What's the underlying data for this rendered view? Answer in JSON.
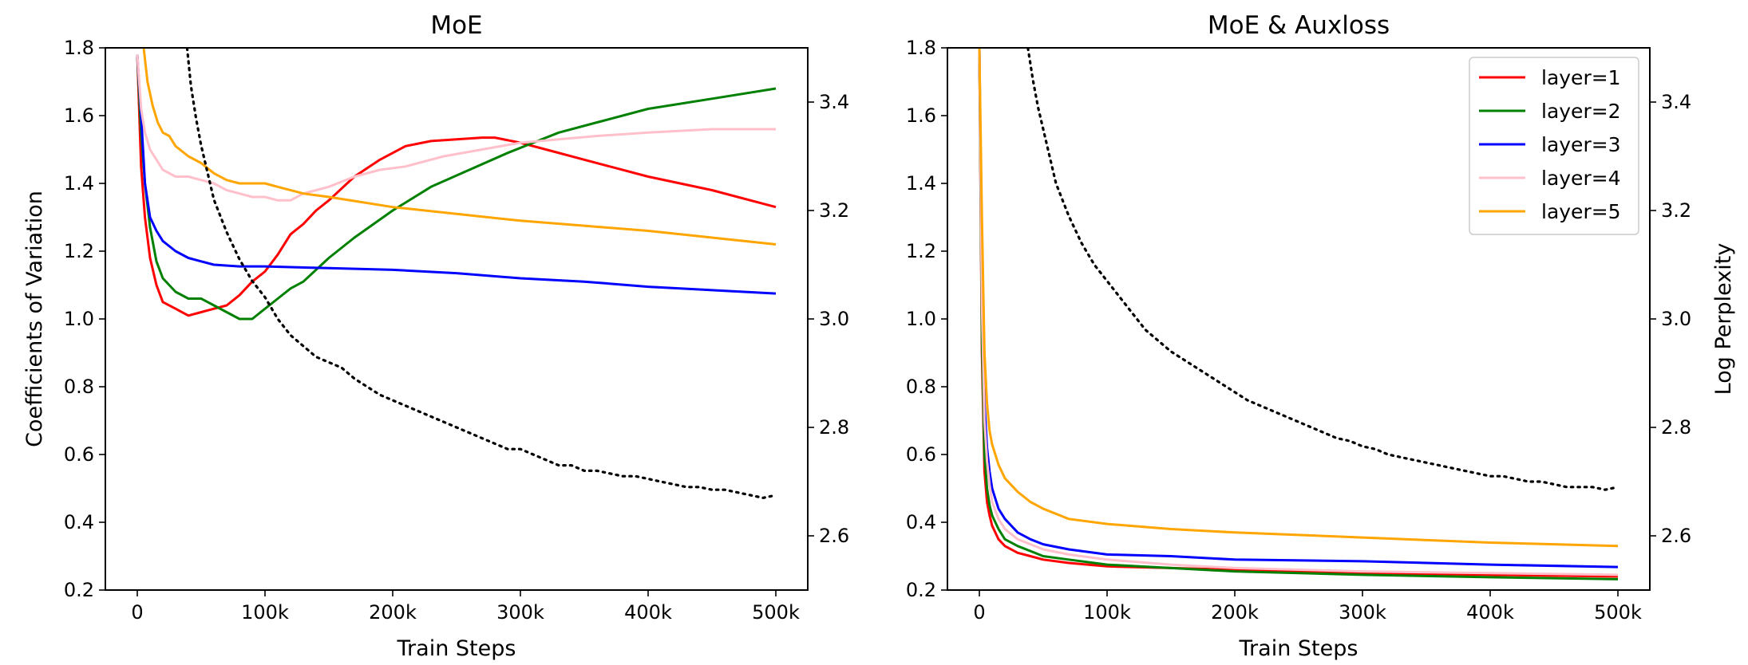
{
  "chart_data": [
    {
      "type": "line",
      "title": "MoE",
      "xlabel": "Train Steps",
      "ylabel": "Coefficients of Variation",
      "y2label": "",
      "xlim": [
        -25000,
        525000
      ],
      "ylim": [
        0.2,
        1.8
      ],
      "y2lim": [
        2.5,
        3.5
      ],
      "xticks": [
        0,
        100000,
        200000,
        300000,
        400000,
        500000
      ],
      "xtick_labels": [
        "0",
        "100k",
        "200k",
        "300k",
        "400k",
        "500k"
      ],
      "yticks": [
        0.2,
        0.4,
        0.6,
        0.8,
        1.0,
        1.2,
        1.4,
        1.6,
        1.8
      ],
      "ytick_labels": [
        "0.2",
        "0.4",
        "0.6",
        "0.8",
        "1.0",
        "1.2",
        "1.4",
        "1.6",
        "1.8"
      ],
      "y2ticks": [
        2.6,
        2.8,
        3.0,
        3.2,
        3.4
      ],
      "y2tick_labels": [
        "2.6",
        "2.8",
        "3.0",
        "3.2",
        "3.4"
      ],
      "grid": false,
      "legend": null,
      "series": [
        {
          "name": "layer=1",
          "color": "#ff0000",
          "axis": "left",
          "x": [
            0,
            3000,
            6000,
            10000,
            15000,
            20000,
            30000,
            40000,
            50000,
            60000,
            70000,
            80000,
            90000,
            100000,
            110000,
            120000,
            130000,
            140000,
            150000,
            170000,
            190000,
            210000,
            230000,
            250000,
            270000,
            280000,
            300000,
            320000,
            350000,
            400000,
            450000,
            500000
          ],
          "y": [
            1.78,
            1.45,
            1.3,
            1.18,
            1.1,
            1.05,
            1.03,
            1.01,
            1.02,
            1.03,
            1.04,
            1.07,
            1.11,
            1.14,
            1.19,
            1.25,
            1.28,
            1.32,
            1.35,
            1.42,
            1.47,
            1.51,
            1.525,
            1.53,
            1.535,
            1.535,
            1.52,
            1.5,
            1.47,
            1.42,
            1.38,
            1.33
          ]
        },
        {
          "name": "layer=2",
          "color": "#008000",
          "axis": "left",
          "x": [
            0,
            3000,
            6000,
            10000,
            15000,
            20000,
            30000,
            40000,
            50000,
            60000,
            70000,
            80000,
            90000,
            100000,
            110000,
            120000,
            130000,
            150000,
            170000,
            200000,
            230000,
            260000,
            290000,
            310000,
            330000,
            360000,
            400000,
            450000,
            500000
          ],
          "y": [
            1.78,
            1.55,
            1.4,
            1.27,
            1.17,
            1.12,
            1.08,
            1.06,
            1.06,
            1.04,
            1.02,
            1.0,
            1.0,
            1.03,
            1.06,
            1.09,
            1.11,
            1.18,
            1.24,
            1.32,
            1.39,
            1.44,
            1.49,
            1.52,
            1.55,
            1.58,
            1.62,
            1.65,
            1.68
          ]
        },
        {
          "name": "layer=3",
          "color": "#0000ff",
          "axis": "left",
          "x": [
            0,
            3000,
            6000,
            10000,
            15000,
            20000,
            30000,
            40000,
            50000,
            60000,
            80000,
            100000,
            150000,
            200000,
            250000,
            300000,
            350000,
            400000,
            450000,
            500000
          ],
          "y": [
            1.78,
            1.6,
            1.4,
            1.3,
            1.26,
            1.23,
            1.2,
            1.18,
            1.17,
            1.16,
            1.155,
            1.155,
            1.15,
            1.145,
            1.135,
            1.12,
            1.11,
            1.095,
            1.085,
            1.075
          ]
        },
        {
          "name": "layer=4",
          "color": "#ffc0cb",
          "axis": "left",
          "x": [
            0,
            3000,
            6000,
            10000,
            15000,
            20000,
            30000,
            40000,
            50000,
            60000,
            70000,
            80000,
            90000,
            100000,
            110000,
            120000,
            130000,
            140000,
            150000,
            170000,
            190000,
            210000,
            240000,
            270000,
            300000,
            330000,
            360000,
            400000,
            450000,
            500000
          ],
          "y": [
            1.78,
            1.62,
            1.55,
            1.5,
            1.47,
            1.44,
            1.42,
            1.42,
            1.41,
            1.4,
            1.38,
            1.37,
            1.36,
            1.36,
            1.35,
            1.35,
            1.37,
            1.38,
            1.39,
            1.42,
            1.44,
            1.45,
            1.48,
            1.5,
            1.52,
            1.53,
            1.54,
            1.55,
            1.56,
            1.56
          ]
        },
        {
          "name": "layer=5",
          "color": "#ffa500",
          "axis": "left",
          "x": [
            5000,
            8000,
            12000,
            16000,
            20000,
            25000,
            30000,
            40000,
            50000,
            60000,
            70000,
            80000,
            90000,
            100000,
            110000,
            130000,
            150000,
            200000,
            250000,
            300000,
            350000,
            400000,
            450000,
            500000
          ],
          "y": [
            1.8,
            1.7,
            1.63,
            1.58,
            1.55,
            1.54,
            1.51,
            1.48,
            1.46,
            1.43,
            1.41,
            1.4,
            1.4,
            1.4,
            1.39,
            1.37,
            1.36,
            1.33,
            1.31,
            1.29,
            1.275,
            1.26,
            1.24,
            1.22
          ]
        },
        {
          "name": "",
          "color": "#000000",
          "axis": "right",
          "dotted": true,
          "x": [
            39000,
            42000,
            46000,
            50000,
            55000,
            60000,
            70000,
            80000,
            90000,
            100000,
            110000,
            120000,
            130000,
            140000,
            150000,
            160000,
            170000,
            180000,
            190000,
            200000,
            210000,
            220000,
            230000,
            240000,
            250000,
            260000,
            270000,
            280000,
            290000,
            300000,
            310000,
            320000,
            330000,
            340000,
            350000,
            360000,
            370000,
            380000,
            390000,
            400000,
            410000,
            420000,
            430000,
            440000,
            450000,
            460000,
            470000,
            480000,
            490000,
            500000
          ],
          "y": [
            3.5,
            3.43,
            3.37,
            3.32,
            3.27,
            3.22,
            3.16,
            3.11,
            3.07,
            3.04,
            3.0,
            2.97,
            2.95,
            2.93,
            2.92,
            2.91,
            2.89,
            2.875,
            2.86,
            2.85,
            2.84,
            2.83,
            2.82,
            2.81,
            2.8,
            2.79,
            2.78,
            2.77,
            2.76,
            2.76,
            2.75,
            2.74,
            2.73,
            2.73,
            2.72,
            2.72,
            2.715,
            2.71,
            2.71,
            2.705,
            2.7,
            2.695,
            2.69,
            2.69,
            2.685,
            2.685,
            2.68,
            2.675,
            2.67,
            2.675
          ]
        }
      ]
    },
    {
      "type": "line",
      "title": "MoE & Auxloss",
      "xlabel": "Train Steps",
      "ylabel": "",
      "y2label": "Log Perplexity",
      "xlim": [
        -25000,
        525000
      ],
      "ylim": [
        0.2,
        1.8
      ],
      "y2lim": [
        2.5,
        3.5
      ],
      "xticks": [
        0,
        100000,
        200000,
        300000,
        400000,
        500000
      ],
      "xtick_labels": [
        "0",
        "100k",
        "200k",
        "300k",
        "400k",
        "500k"
      ],
      "yticks": [
        0.2,
        0.4,
        0.6,
        0.8,
        1.0,
        1.2,
        1.4,
        1.6,
        1.8
      ],
      "ytick_labels": [
        "0.2",
        "0.4",
        "0.6",
        "0.8",
        "1.0",
        "1.2",
        "1.4",
        "1.6",
        "1.8"
      ],
      "y2ticks": [
        2.6,
        2.8,
        3.0,
        3.2,
        3.4
      ],
      "y2tick_labels": [
        "2.6",
        "2.8",
        "3.0",
        "3.2",
        "3.4"
      ],
      "grid": false,
      "legend": {
        "placement": "top-right",
        "entries": [
          "layer=1",
          "layer=2",
          "layer=3",
          "layer=4",
          "layer=5"
        ]
      },
      "series": [
        {
          "name": "layer=1",
          "color": "#ff0000",
          "axis": "left",
          "x": [
            0,
            2000,
            4000,
            6000,
            8000,
            10000,
            15000,
            20000,
            30000,
            40000,
            50000,
            70000,
            100000,
            150000,
            200000,
            300000,
            400000,
            500000
          ],
          "y": [
            1.8,
            0.9,
            0.55,
            0.46,
            0.42,
            0.39,
            0.35,
            0.33,
            0.31,
            0.3,
            0.29,
            0.28,
            0.27,
            0.265,
            0.26,
            0.25,
            0.245,
            0.24
          ]
        },
        {
          "name": "layer=2",
          "color": "#008000",
          "axis": "left",
          "x": [
            0,
            2000,
            4000,
            6000,
            8000,
            10000,
            15000,
            20000,
            30000,
            40000,
            50000,
            70000,
            100000,
            150000,
            200000,
            300000,
            400000,
            500000
          ],
          "y": [
            1.8,
            0.95,
            0.6,
            0.5,
            0.45,
            0.42,
            0.38,
            0.35,
            0.33,
            0.315,
            0.3,
            0.29,
            0.275,
            0.265,
            0.255,
            0.245,
            0.238,
            0.232
          ]
        },
        {
          "name": "layer=3",
          "color": "#0000ff",
          "axis": "left",
          "x": [
            0,
            2000,
            4000,
            6000,
            8000,
            10000,
            15000,
            20000,
            30000,
            40000,
            50000,
            70000,
            100000,
            150000,
            200000,
            300000,
            400000,
            500000
          ],
          "y": [
            1.8,
            1.15,
            0.75,
            0.62,
            0.55,
            0.5,
            0.44,
            0.41,
            0.37,
            0.35,
            0.335,
            0.32,
            0.305,
            0.3,
            0.29,
            0.285,
            0.275,
            0.268
          ]
        },
        {
          "name": "layer=4",
          "color": "#ffc0cb",
          "axis": "left",
          "x": [
            0,
            2000,
            4000,
            6000,
            8000,
            10000,
            15000,
            20000,
            30000,
            40000,
            50000,
            70000,
            100000,
            150000,
            200000,
            300000,
            400000,
            500000
          ],
          "y": [
            1.8,
            1.05,
            0.7,
            0.58,
            0.51,
            0.46,
            0.41,
            0.38,
            0.35,
            0.335,
            0.32,
            0.305,
            0.29,
            0.275,
            0.265,
            0.255,
            0.25,
            0.245
          ]
        },
        {
          "name": "layer=5",
          "color": "#ffa500",
          "axis": "left",
          "x": [
            0,
            2000,
            4000,
            6000,
            8000,
            10000,
            15000,
            20000,
            30000,
            40000,
            50000,
            70000,
            100000,
            150000,
            200000,
            300000,
            400000,
            500000
          ],
          "y": [
            1.8,
            1.3,
            0.9,
            0.75,
            0.67,
            0.63,
            0.57,
            0.53,
            0.49,
            0.46,
            0.44,
            0.41,
            0.395,
            0.38,
            0.37,
            0.355,
            0.34,
            0.33
          ]
        },
        {
          "name": "",
          "color": "#000000",
          "axis": "right",
          "dotted": true,
          "x": [
            38000,
            42000,
            46000,
            50000,
            55000,
            60000,
            70000,
            80000,
            90000,
            100000,
            110000,
            120000,
            130000,
            140000,
            150000,
            160000,
            170000,
            180000,
            190000,
            200000,
            210000,
            220000,
            230000,
            240000,
            250000,
            260000,
            270000,
            280000,
            290000,
            300000,
            310000,
            320000,
            330000,
            340000,
            350000,
            360000,
            370000,
            380000,
            390000,
            400000,
            410000,
            420000,
            430000,
            440000,
            450000,
            460000,
            470000,
            480000,
            490000,
            500000
          ],
          "y": [
            3.5,
            3.44,
            3.39,
            3.35,
            3.3,
            3.25,
            3.19,
            3.14,
            3.1,
            3.07,
            3.04,
            3.01,
            2.98,
            2.96,
            2.94,
            2.925,
            2.91,
            2.895,
            2.88,
            2.865,
            2.85,
            2.84,
            2.83,
            2.82,
            2.81,
            2.8,
            2.79,
            2.78,
            2.775,
            2.765,
            2.76,
            2.75,
            2.745,
            2.74,
            2.735,
            2.73,
            2.725,
            2.72,
            2.715,
            2.71,
            2.71,
            2.705,
            2.7,
            2.7,
            2.695,
            2.69,
            2.69,
            2.69,
            2.685,
            2.69
          ]
        }
      ]
    }
  ]
}
